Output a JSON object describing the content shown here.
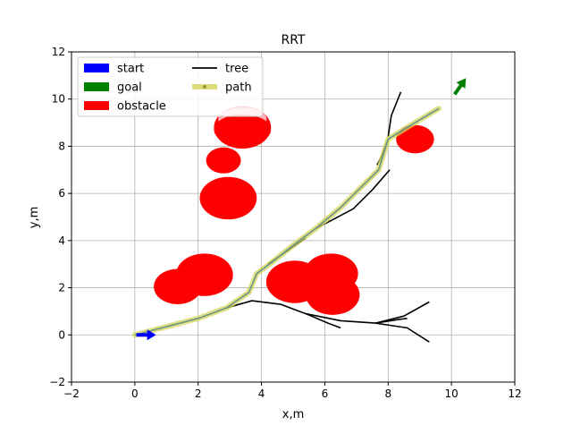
{
  "chart_data": {
    "type": "line",
    "title": "RRT",
    "xlabel": "x,m",
    "ylabel": "y,m",
    "xlim": [
      -2,
      12
    ],
    "ylim": [
      -2,
      12
    ],
    "xticks": [
      -2,
      0,
      2,
      4,
      6,
      8,
      10,
      12
    ],
    "yticks": [
      -2,
      0,
      2,
      4,
      6,
      8,
      10,
      12
    ],
    "grid": true,
    "legend": {
      "placement": "top-left",
      "columns": 2,
      "entries": [
        {
          "label": "start",
          "color": "#0000ff",
          "kind": "patch"
        },
        {
          "label": "goal",
          "color": "#008000",
          "kind": "patch"
        },
        {
          "label": "obstacle",
          "color": "#ff0000",
          "kind": "patch"
        },
        {
          "label": "tree",
          "color": "#000000",
          "kind": "line"
        },
        {
          "label": "path",
          "color": "#d4d45a",
          "kind": "thickline"
        }
      ]
    },
    "start": {
      "x": 0.05,
      "y": 0.0,
      "heading_deg": 0,
      "color": "#0000ff"
    },
    "goal": {
      "x": 10.1,
      "y": 10.2,
      "heading_deg": 55,
      "color": "#008000"
    },
    "obstacles": [
      {
        "x": 1.35,
        "y": 2.05,
        "r": 0.75
      },
      {
        "x": 2.2,
        "y": 2.55,
        "r": 0.9
      },
      {
        "x": 2.95,
        "y": 5.8,
        "r": 0.9
      },
      {
        "x": 2.8,
        "y": 7.4,
        "r": 0.55
      },
      {
        "x": 3.4,
        "y": 8.8,
        "r": 0.9
      },
      {
        "x": 5.05,
        "y": 2.25,
        "r": 0.9
      },
      {
        "x": 6.2,
        "y": 2.6,
        "r": 0.85
      },
      {
        "x": 6.25,
        "y": 1.7,
        "r": 0.85
      },
      {
        "x": 8.85,
        "y": 8.3,
        "r": 0.6
      }
    ],
    "obstacle_color": "#ff0000",
    "tree_color": "#000000",
    "tree": [
      [
        [
          0,
          0
        ],
        [
          1,
          0.35
        ],
        [
          2,
          0.7
        ],
        [
          2.9,
          1.15
        ],
        [
          3.6,
          1.8
        ],
        [
          3.85,
          2.6
        ],
        [
          4.3,
          3.05
        ],
        [
          5.0,
          3.8
        ],
        [
          5.7,
          4.5
        ],
        [
          6.5,
          5.4
        ],
        [
          7.1,
          6.2
        ],
        [
          7.7,
          7.0
        ],
        [
          8.0,
          8.3
        ],
        [
          8.6,
          8.8
        ],
        [
          9.6,
          9.6
        ]
      ],
      [
        [
          2.9,
          1.15
        ],
        [
          3.7,
          1.45
        ],
        [
          4.6,
          1.3
        ],
        [
          5.4,
          0.9
        ],
        [
          6.5,
          0.6
        ],
        [
          7.6,
          0.5
        ],
        [
          8.6,
          0.3
        ],
        [
          9.3,
          -0.3
        ]
      ],
      [
        [
          4.2,
          3.0
        ],
        [
          5.4,
          4.1
        ]
      ],
      [
        [
          5.7,
          4.5
        ],
        [
          6.2,
          4.85
        ],
        [
          6.9,
          5.35
        ],
        [
          7.5,
          6.15
        ],
        [
          8.05,
          7.0
        ]
      ],
      [
        [
          7.65,
          7.2
        ],
        [
          7.8,
          7.6
        ],
        [
          8.0,
          8.3
        ]
      ],
      [
        [
          8.0,
          8.4
        ],
        [
          8.1,
          9.3
        ],
        [
          8.4,
          10.3
        ]
      ],
      [
        [
          5.4,
          0.9
        ],
        [
          6.1,
          0.5
        ],
        [
          6.5,
          0.3
        ]
      ],
      [
        [
          7.6,
          0.5
        ],
        [
          8.5,
          0.8
        ],
        [
          9.3,
          1.4
        ]
      ],
      [
        [
          7.6,
          0.5
        ],
        [
          8.3,
          0.65
        ],
        [
          8.6,
          0.7
        ]
      ]
    ],
    "path_color": "#d4d45a",
    "path": [
      [
        0,
        0
      ],
      [
        1,
        0.35
      ],
      [
        2,
        0.7
      ],
      [
        2.9,
        1.15
      ],
      [
        3.6,
        1.8
      ],
      [
        3.85,
        2.6
      ],
      [
        4.3,
        3.05
      ],
      [
        5.0,
        3.8
      ],
      [
        5.7,
        4.5
      ],
      [
        6.5,
        5.4
      ],
      [
        7.1,
        6.2
      ],
      [
        7.7,
        7.0
      ],
      [
        8.0,
        8.3
      ],
      [
        8.6,
        8.8
      ],
      [
        9.6,
        9.6
      ]
    ]
  }
}
